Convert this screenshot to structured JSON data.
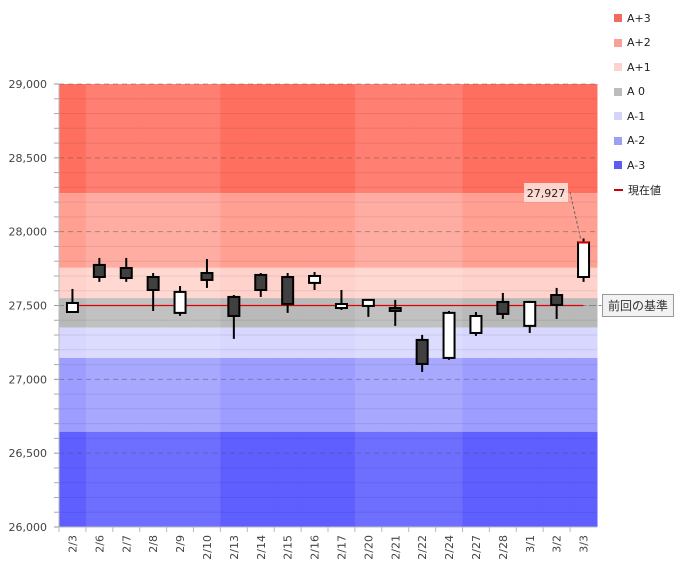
{
  "chart_data": {
    "type": "candlestick",
    "title": "",
    "xlabel": "",
    "ylabel": "",
    "ylim": [
      26000,
      29000
    ],
    "yticks": [
      26000,
      26500,
      27000,
      27500,
      28000,
      28500,
      29000
    ],
    "ytick_labels": [
      "26,000",
      "26,500",
      "27,000",
      "27,500",
      "28,000",
      "28,500",
      "29,000"
    ],
    "minor_tick_step": 100,
    "grid": "dashed at major ticks",
    "categories": [
      "2/3",
      "2/6",
      "2/7",
      "2/8",
      "2/9",
      "2/10",
      "2/13",
      "2/14",
      "2/15",
      "2/16",
      "2/17",
      "2/20",
      "2/21",
      "2/22",
      "2/24",
      "2/27",
      "2/28",
      "3/1",
      "3/2",
      "3/3"
    ],
    "week_shading": [
      1,
      0,
      0,
      0,
      0,
      0,
      1,
      1,
      1,
      1,
      1,
      0,
      0,
      0,
      0,
      1,
      1,
      1,
      1,
      1
    ],
    "ohlc": [
      {
        "date": "2/3",
        "open": 27456,
        "high": 27612,
        "low": 27450,
        "close": 27517
      },
      {
        "date": "2/6",
        "open": 27775,
        "high": 27822,
        "low": 27660,
        "close": 27693
      },
      {
        "date": "2/7",
        "open": 27754,
        "high": 27822,
        "low": 27660,
        "close": 27686
      },
      {
        "date": "2/8",
        "open": 27693,
        "high": 27720,
        "low": 27463,
        "close": 27605
      },
      {
        "date": "2/9",
        "open": 27450,
        "high": 27632,
        "low": 27430,
        "close": 27592
      },
      {
        "date": "2/10",
        "open": 27720,
        "high": 27815,
        "low": 27619,
        "close": 27673
      },
      {
        "date": "2/13",
        "open": 27558,
        "high": 27571,
        "low": 27274,
        "close": 27429
      },
      {
        "date": "2/14",
        "open": 27707,
        "high": 27720,
        "low": 27558,
        "close": 27605
      },
      {
        "date": "2/15",
        "open": 27693,
        "high": 27720,
        "low": 27450,
        "close": 27510
      },
      {
        "date": "2/16",
        "open": 27653,
        "high": 27727,
        "low": 27605,
        "close": 27700
      },
      {
        "date": "2/17",
        "open": 27483,
        "high": 27605,
        "low": 27470,
        "close": 27510
      },
      {
        "date": "2/20",
        "open": 27497,
        "high": 27538,
        "low": 27423,
        "close": 27538
      },
      {
        "date": "2/21",
        "open": 27483,
        "high": 27538,
        "low": 27362,
        "close": 27463
      },
      {
        "date": "2/22",
        "open": 27267,
        "high": 27301,
        "low": 27050,
        "close": 27104
      },
      {
        "date": "2/24",
        "open": 27145,
        "high": 27463,
        "low": 27132,
        "close": 27450
      },
      {
        "date": "2/27",
        "open": 27314,
        "high": 27456,
        "low": 27294,
        "close": 27429
      },
      {
        "date": "2/28",
        "open": 27524,
        "high": 27585,
        "low": 27409,
        "close": 27443
      },
      {
        "date": "3/1",
        "open": 27362,
        "high": 27531,
        "low": 27314,
        "close": 27524
      },
      {
        "date": "3/2",
        "open": 27571,
        "high": 27619,
        "low": 27409,
        "close": 27504
      },
      {
        "date": "3/3",
        "open": 27693,
        "high": 27954,
        "low": 27660,
        "close": 27927
      }
    ],
    "bands": [
      {
        "name": "A+3",
        "from": 28260,
        "to": 29000,
        "color": "#ff6f5f",
        "color_alt": "#ff7f72"
      },
      {
        "name": "A+2",
        "from": 27755,
        "to": 28260,
        "color": "#ffa093",
        "color_alt": "#ffada2"
      },
      {
        "name": "A+1",
        "from": 27550,
        "to": 27755,
        "color": "#ffd2cc",
        "color_alt": "#ffd8d2"
      },
      {
        "name": "A 0",
        "from": 27350,
        "to": 27550,
        "color": "#b9b9b9",
        "color_alt": "#c1c1c1"
      },
      {
        "name": "A-1",
        "from": 27145,
        "to": 27350,
        "color": "#d7d7ff",
        "color_alt": "#dcdcff"
      },
      {
        "name": "A-2",
        "from": 26645,
        "to": 27145,
        "color": "#9d9dff",
        "color_alt": "#a8a8ff"
      },
      {
        "name": "A-3",
        "from": 26000,
        "to": 26645,
        "color": "#5f5fff",
        "color_alt": "#6f6fff"
      }
    ],
    "current_line": {
      "name": "現在値",
      "value": 27500,
      "color": "#cc0000"
    },
    "last_price_label": "27,927",
    "reference_label": "前回の基準",
    "legend": [
      {
        "label": "A+3",
        "color": "#f26b5e",
        "kind": "box"
      },
      {
        "label": "A+2",
        "color": "#f7a096",
        "kind": "box"
      },
      {
        "label": "A+1",
        "color": "#fcd3ce",
        "kind": "box"
      },
      {
        "label": "A 0",
        "color": "#bcbcbc",
        "kind": "box"
      },
      {
        "label": "A-1",
        "color": "#d4d4fa",
        "kind": "box"
      },
      {
        "label": "A-2",
        "color": "#9e9ef5",
        "kind": "box"
      },
      {
        "label": "A-3",
        "color": "#5d5df2",
        "kind": "box"
      },
      {
        "label": "現在値",
        "color": "#cc0000",
        "kind": "line"
      }
    ],
    "legend_position": "right"
  }
}
